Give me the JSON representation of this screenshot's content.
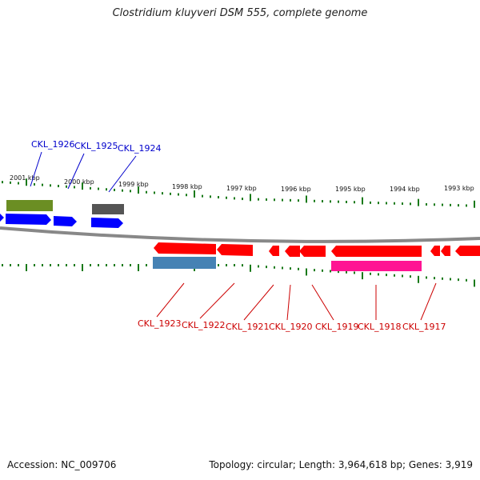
{
  "title": "Clostridium kluyveri DSM 555, complete genome",
  "footer": {
    "accession": "Accession: NC_009706",
    "stats": "Topology: circular; Length: 3,964,618 bp; Genes: 3,919"
  },
  "colors": {
    "strand_plus_gene": "#0000ff",
    "strand_minus_gene": "#ff0000",
    "label_plus": "#0000cc",
    "label_minus": "#cc0000",
    "tick": "#1a7a1a",
    "olive_feature": "#6b8e23",
    "gray_feature": "#555555",
    "steelblue_feature": "#4682b4",
    "magenta_feature": "#ff1493",
    "backbone": "#888888"
  },
  "ruler": {
    "labels": [
      "2001 kbp",
      "2000 kbp",
      "1999 kbp",
      "1998 kbp",
      "1997 kbp",
      "1996 kbp",
      "1995 kbp",
      "1994 kbp",
      "1993 kbp"
    ]
  },
  "top_labels": [
    "CKL_1926",
    "CKL_1925",
    "CKL_1924"
  ],
  "bottom_labels": [
    "CKL_1923",
    "CKL_1922",
    "CKL_1921",
    "CKL_1920",
    "CKL_1919",
    "CKL_1918",
    "CKL_1917"
  ]
}
